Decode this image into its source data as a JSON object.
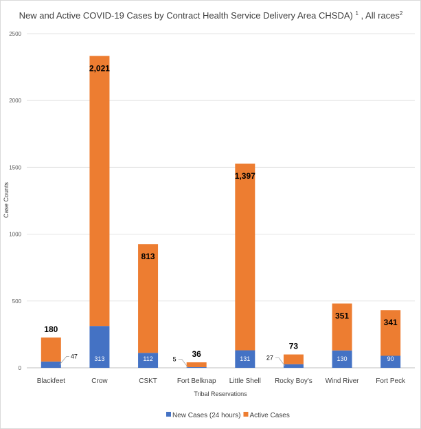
{
  "chart_data": {
    "type": "bar",
    "stacked": true,
    "title": "New and Active COVID-19 Cases by Contract Health Service Delivery Area CHSDA) ",
    "title_sup1": "1",
    "title_mid": " , All races",
    "title_sup2": "2",
    "xlabel": "Tribal Reservations",
    "ylabel": "Case Counts",
    "ylim": [
      0,
      2500
    ],
    "yticks": [
      "0",
      "500",
      "1000",
      "1500",
      "2000",
      "2500"
    ],
    "grid": true,
    "legend_position": "bottom",
    "categories": [
      "Blackfeet",
      "Crow",
      "CSKT",
      "Fort Belknap",
      "Little Shell",
      "Rocky Boy's",
      "Wind River",
      "Fort Peck"
    ],
    "series": [
      {
        "name": "New Cases (24 hours)",
        "color": "#4472c4",
        "values": [
          47,
          313,
          112,
          5,
          131,
          27,
          130,
          90
        ],
        "labels": [
          "47",
          "313",
          "112",
          "5",
          "131",
          "27",
          "130",
          "90"
        ]
      },
      {
        "name": "Active Cases",
        "color": "#ed7d31",
        "values": [
          180,
          2021,
          813,
          36,
          1397,
          73,
          351,
          341
        ],
        "labels": [
          "180",
          "2,021",
          "813",
          "36",
          "1,397",
          "73",
          "351",
          "341"
        ]
      }
    ]
  }
}
